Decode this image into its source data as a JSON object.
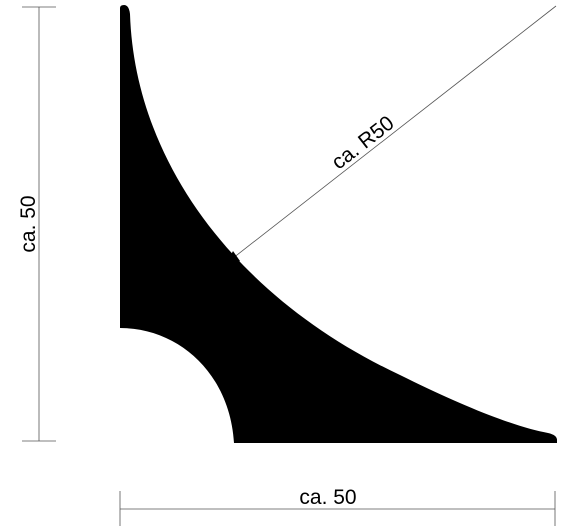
{
  "drawing": {
    "radius_label": "ca. R50",
    "height_label": "ca. 50",
    "width_label": "ca. 50",
    "profile_color": "#000000",
    "dimension_line_color": "#555555"
  }
}
